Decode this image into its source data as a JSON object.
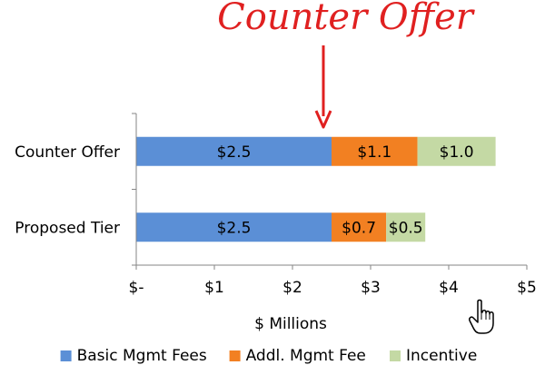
{
  "chart_data": {
    "type": "bar",
    "orientation": "horizontal",
    "stacked": true,
    "categories": [
      "Counter Offer",
      "Proposed Tier"
    ],
    "series": [
      {
        "name": "Basic Mgmt Fees",
        "color": "#5b8fd6",
        "values": [
          2.5,
          2.5
        ],
        "labels": [
          "$2.5",
          "$2.5"
        ]
      },
      {
        "name": "Addl. Mgmt Fee",
        "color": "#f28022",
        "values": [
          1.1,
          0.7
        ],
        "labels": [
          "$1.1",
          "$0.7"
        ]
      },
      {
        "name": "Incentive",
        "color": "#c4d9a4",
        "values": [
          1.0,
          0.5
        ],
        "labels": [
          "$1.0",
          "$0.5"
        ]
      }
    ],
    "xlim": [
      0,
      5
    ],
    "xticks": [
      0,
      1,
      2,
      3,
      4,
      5
    ],
    "xtick_labels": [
      "$-",
      "$1",
      "$2",
      "$3",
      "$4",
      "$5"
    ],
    "xlabel": "$ Millions",
    "legend_position": "bottom",
    "grid": false
  },
  "annotation": {
    "text": "Counter Offer",
    "color": "#e02020",
    "arrow_icon": "down-arrow-icon"
  },
  "cursor": {
    "icon": "hand-pointer-icon"
  }
}
